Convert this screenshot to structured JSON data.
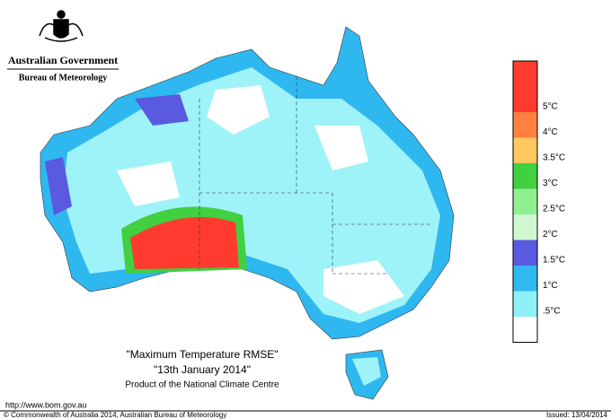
{
  "header": {
    "government": "Australian Government",
    "agency": "Bureau of Meteorology"
  },
  "map": {
    "title": "\"Maximum Temperature RMSE\"",
    "date": "\"13th  January  2014\"",
    "product": "Product of the National Climate Centre"
  },
  "legend": {
    "colors": [
      "#ff3b30",
      "#ff3b30",
      "#ff8040",
      "#ffc860",
      "#40d040",
      "#90f090",
      "#d0f8d0",
      "#5a5ae0",
      "#30b8f0",
      "#90f0f8",
      "#ffffff"
    ],
    "labels": [
      "5°C",
      "4°C",
      "3.5°C",
      "3°C",
      "2.5°C",
      "2°C",
      "1.5°C",
      "1°C",
      ".5°C"
    ]
  },
  "footer": {
    "url": "http://www.bom.gov.au",
    "copyright": "© Commonwealth of Australia 2014, Australian Bureau of Meteorology",
    "issued": "Issued: 13/04/2014"
  }
}
